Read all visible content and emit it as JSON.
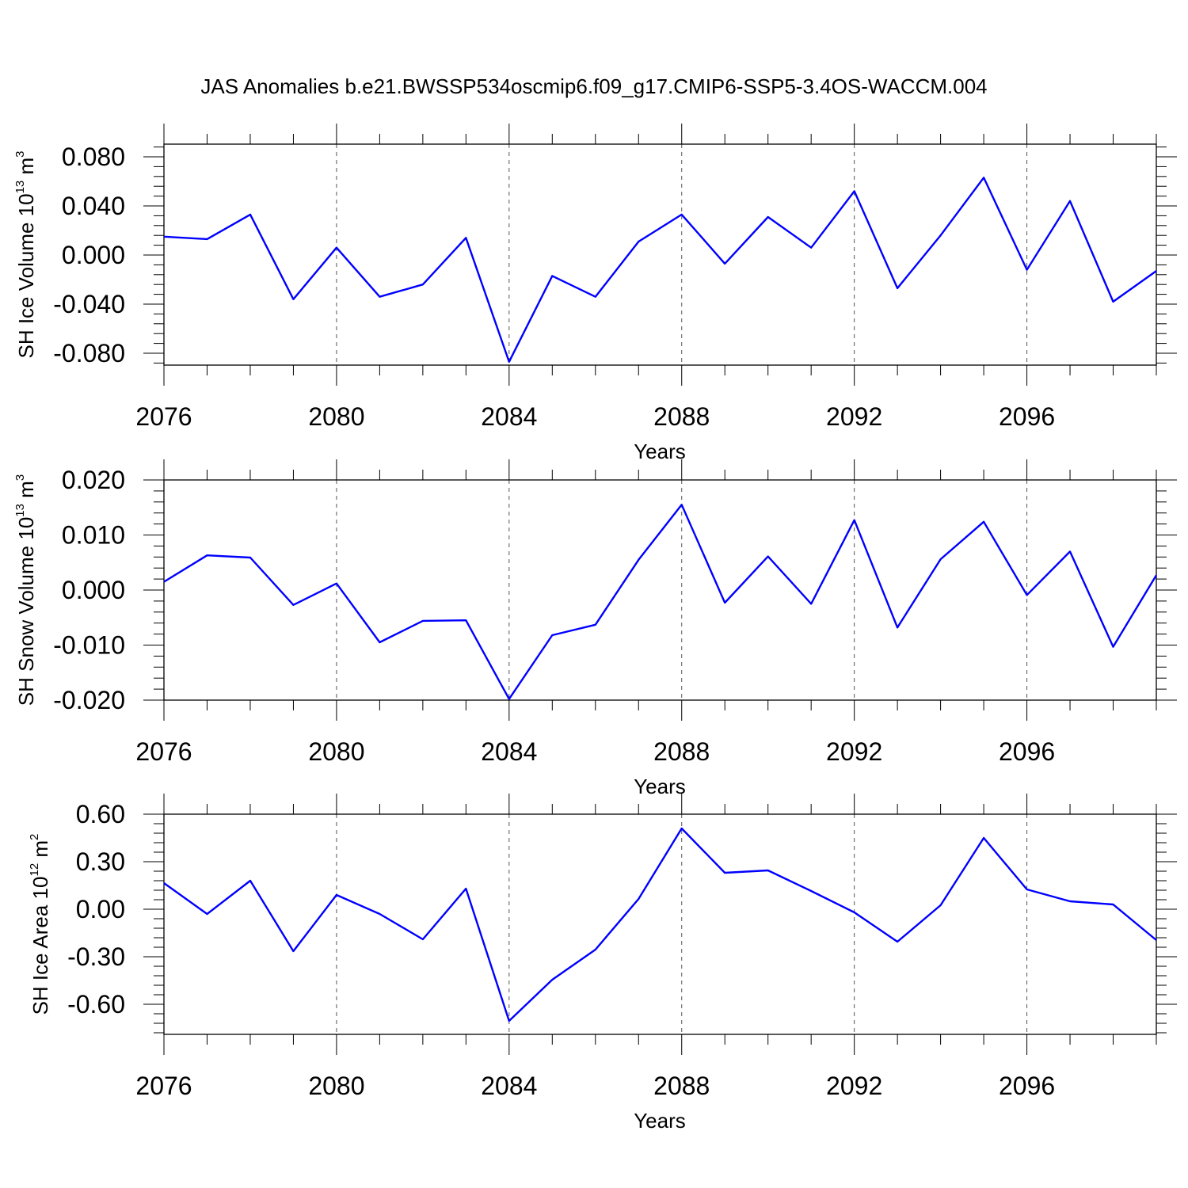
{
  "figure_title": "JAS Anomalies b.e21.BWSSP534oscmip6.f09_g17.CMIP6-SSP5-3.4OS-WACCM.004",
  "colors": {
    "line": "#0000ff",
    "axis": "#000000",
    "grid": "#555555"
  },
  "chart_data": [
    {
      "type": "line",
      "title": "",
      "ylabel": {
        "text": "SH Ice Volume 10",
        "sup": "13",
        "unit": " m",
        "unit_sup": "3"
      },
      "xlabel": "Years",
      "xlim": [
        2076,
        2099
      ],
      "ylim": [
        -0.09,
        0.09
      ],
      "xticks": [
        2076,
        2080,
        2084,
        2088,
        2092,
        2096
      ],
      "xtick_labels": [
        "2076",
        "2080",
        "2084",
        "2088",
        "2092",
        "2096"
      ],
      "yticks": [
        -0.08,
        -0.04,
        0.0,
        0.04,
        0.08
      ],
      "ytick_labels": [
        "-0.080",
        "-0.040",
        "0.000",
        "0.040",
        "0.080"
      ],
      "grid": "vertical dashed at major x ticks",
      "x": [
        2076,
        2077,
        2078,
        2079,
        2080,
        2081,
        2082,
        2083,
        2084,
        2085,
        2086,
        2087,
        2088,
        2089,
        2090,
        2091,
        2092,
        2093,
        2094,
        2095,
        2096,
        2097,
        2098,
        2099
      ],
      "series": [
        {
          "values": [
            0.015,
            0.013,
            0.033,
            -0.036,
            0.006,
            -0.034,
            -0.024,
            0.014,
            -0.087,
            -0.017,
            -0.034,
            0.011,
            0.033,
            -0.007,
            0.031,
            0.006,
            0.052,
            -0.027,
            0.016,
            0.063,
            -0.012,
            0.044,
            -0.038,
            -0.013
          ]
        }
      ]
    },
    {
      "type": "line",
      "title": "",
      "ylabel": {
        "text": "SH Snow Volume 10",
        "sup": "13",
        "unit": " m",
        "unit_sup": "3"
      },
      "xlabel": "Years",
      "xlim": [
        2076,
        2099
      ],
      "ylim": [
        -0.02,
        0.02
      ],
      "xticks": [
        2076,
        2080,
        2084,
        2088,
        2092,
        2096
      ],
      "xtick_labels": [
        "2076",
        "2080",
        "2084",
        "2088",
        "2092",
        "2096"
      ],
      "yticks": [
        -0.02,
        -0.01,
        0.0,
        0.01,
        0.02
      ],
      "ytick_labels": [
        "-0.020",
        "-0.010",
        "0.000",
        "0.010",
        "0.020"
      ],
      "grid": "vertical dashed at major x ticks",
      "x": [
        2076,
        2077,
        2078,
        2079,
        2080,
        2081,
        2082,
        2083,
        2084,
        2085,
        2086,
        2087,
        2088,
        2089,
        2090,
        2091,
        2092,
        2093,
        2094,
        2095,
        2096,
        2097,
        2098,
        2099
      ],
      "series": [
        {
          "values": [
            0.0015,
            0.0063,
            0.0059,
            -0.0027,
            0.0012,
            -0.0095,
            -0.0056,
            -0.0055,
            -0.0198,
            -0.0082,
            -0.0063,
            0.0055,
            0.0155,
            -0.0023,
            0.0061,
            -0.0025,
            0.0127,
            -0.0068,
            0.0056,
            0.0124,
            -0.0009,
            0.007,
            -0.0103,
            0.0027
          ]
        }
      ]
    },
    {
      "type": "line",
      "title": "",
      "ylabel": {
        "text": "SH Ice Area 10",
        "sup": "12",
        "unit": " m",
        "unit_sup": "2"
      },
      "xlabel": "Years",
      "xlim": [
        2076,
        2099
      ],
      "ylim": [
        -0.79,
        0.6
      ],
      "xticks": [
        2076,
        2080,
        2084,
        2088,
        2092,
        2096
      ],
      "xtick_labels": [
        "2076",
        "2080",
        "2084",
        "2088",
        "2092",
        "2096"
      ],
      "yticks": [
        -0.6,
        -0.3,
        0.0,
        0.3,
        0.6
      ],
      "ytick_labels": [
        "-0.60",
        "-0.30",
        "0.00",
        "0.30",
        "0.60"
      ],
      "grid": "vertical dashed at major x ticks",
      "x": [
        2076,
        2077,
        2078,
        2079,
        2080,
        2081,
        2082,
        2083,
        2084,
        2085,
        2086,
        2087,
        2088,
        2089,
        2090,
        2091,
        2092,
        2093,
        2094,
        2095,
        2096,
        2097,
        2098,
        2099
      ],
      "series": [
        {
          "values": [
            0.165,
            -0.03,
            0.18,
            -0.265,
            0.09,
            -0.03,
            -0.19,
            0.13,
            -0.705,
            -0.445,
            -0.255,
            0.065,
            0.51,
            0.23,
            0.245,
            0.115,
            -0.02,
            -0.205,
            0.025,
            0.45,
            0.125,
            0.05,
            0.03,
            -0.195
          ]
        }
      ]
    }
  ]
}
